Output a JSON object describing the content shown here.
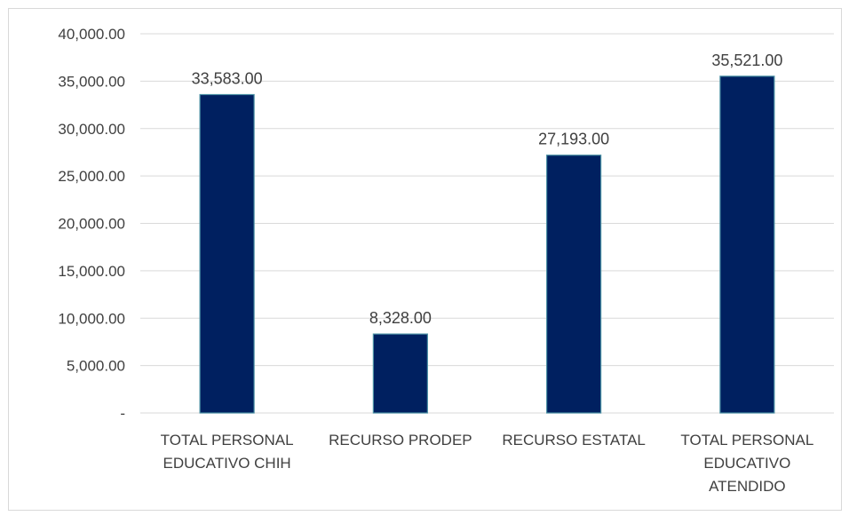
{
  "chart_data": {
    "type": "bar",
    "categories": [
      [
        "TOTAL PERSONAL",
        "EDUCATIVO CHIH"
      ],
      [
        "RECURSO PRODEP"
      ],
      [
        "RECURSO ESTATAL"
      ],
      [
        "TOTAL PERSONAL",
        "EDUCATIVO",
        "ATENDIDO"
      ]
    ],
    "values": [
      33583,
      8328,
      27193,
      35521
    ],
    "value_labels": [
      "33,583.00",
      "8,328.00",
      "27,193.00",
      "35,521.00"
    ],
    "ylim": [
      0,
      40000
    ],
    "yticks": [
      0,
      5000,
      10000,
      15000,
      20000,
      25000,
      30000,
      35000,
      40000
    ],
    "ytick_labels": [
      "-",
      "5,000.00",
      "10,000.00",
      "15,000.00",
      "20,000.00",
      "25,000.00",
      "30,000.00",
      "35,000.00",
      "40,000.00"
    ],
    "grid": true,
    "legend": "none",
    "title": "",
    "xlabel": "",
    "ylabel": "",
    "colors": {
      "bar_fill": "#002060",
      "bar_edge": "#4a90a4",
      "grid": "#d9d9d9",
      "text": "#404040"
    }
  }
}
